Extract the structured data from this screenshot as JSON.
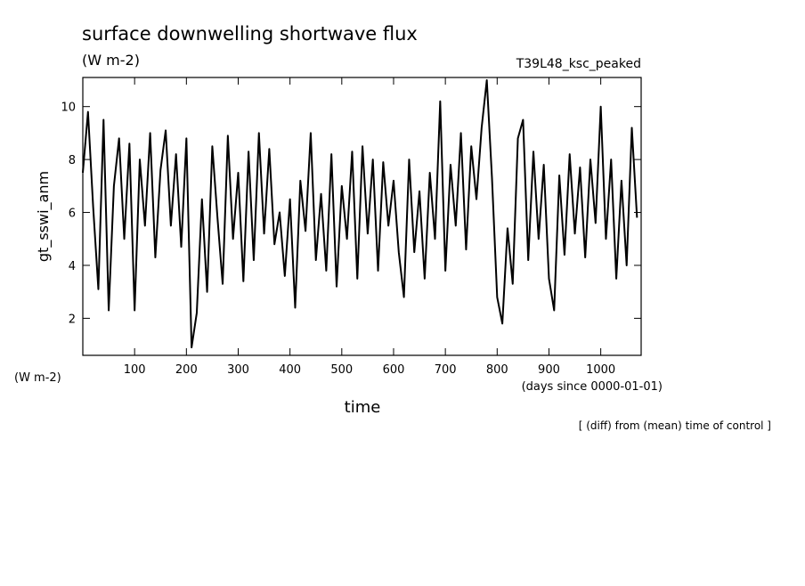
{
  "chart_data": {
    "type": "line",
    "title": "surface downwelling shortwave flux",
    "subtitle": "(W m-2)",
    "annotation": "T39L48_ksc_peaked",
    "y_label": "gt_sswi_anm",
    "y_units": "(W m-2)",
    "x_label": "time",
    "x_units": "(days since 0000-01-01)",
    "footnote": "[ (diff) from (mean) time of control ]",
    "x": [
      0,
      10,
      20,
      30,
      40,
      50,
      60,
      70,
      80,
      90,
      100,
      110,
      120,
      130,
      140,
      150,
      160,
      170,
      180,
      190,
      200,
      210,
      220,
      230,
      240,
      250,
      260,
      270,
      280,
      290,
      300,
      310,
      320,
      330,
      340,
      350,
      360,
      370,
      380,
      390,
      400,
      410,
      420,
      430,
      440,
      450,
      460,
      470,
      480,
      490,
      500,
      510,
      520,
      530,
      540,
      550,
      560,
      570,
      580,
      590,
      600,
      610,
      620,
      630,
      640,
      650,
      660,
      670,
      680,
      690,
      700,
      710,
      720,
      730,
      740,
      750,
      760,
      770,
      780,
      790,
      800,
      810,
      820,
      830,
      840,
      850,
      860,
      870,
      880,
      890,
      900,
      910,
      920,
      930,
      940,
      950,
      960,
      970,
      980,
      990,
      1000,
      1010,
      1020,
      1030,
      1040,
      1050,
      1060,
      1070
    ],
    "series": [
      {
        "name": "gt_sswi_anm",
        "color": "#000000",
        "values": [
          7.5,
          9.8,
          6.2,
          3.1,
          9.5,
          2.3,
          7.0,
          8.8,
          5.0,
          8.6,
          2.3,
          8.0,
          5.5,
          9.0,
          4.3,
          7.6,
          9.1,
          5.5,
          8.2,
          4.7,
          8.8,
          0.9,
          2.2,
          6.5,
          3.0,
          8.5,
          5.8,
          3.3,
          8.9,
          5.0,
          7.5,
          3.4,
          8.3,
          4.2,
          9.0,
          5.2,
          8.4,
          4.8,
          6.0,
          3.6,
          6.5,
          2.4,
          7.2,
          5.3,
          9.0,
          4.2,
          6.7,
          3.8,
          8.2,
          3.2,
          7.0,
          5.0,
          8.3,
          3.5,
          8.5,
          5.2,
          8.0,
          3.8,
          7.9,
          5.5,
          7.2,
          4.5,
          2.8,
          8.0,
          4.5,
          6.8,
          3.5,
          7.5,
          5.0,
          10.2,
          3.8,
          7.8,
          5.5,
          9.0,
          4.6,
          8.5,
          6.5,
          9.2,
          11.0,
          7.3,
          2.8,
          1.8,
          5.4,
          3.3,
          8.8,
          9.5,
          4.2,
          8.3,
          5.0,
          7.8,
          3.5,
          2.3,
          7.4,
          4.4,
          8.2,
          5.2,
          7.7,
          4.3,
          8.0,
          5.6,
          10.0,
          5.0,
          8.0,
          3.5,
          7.2,
          4.0,
          9.2,
          5.8
        ]
      }
    ],
    "xlim": [
      0,
      1078
    ],
    "ylim": [
      0.6,
      11.1
    ],
    "xticks": [
      100,
      200,
      300,
      400,
      500,
      600,
      700,
      800,
      900,
      1000
    ],
    "yticks": [
      2,
      4,
      6,
      8,
      10
    ]
  }
}
